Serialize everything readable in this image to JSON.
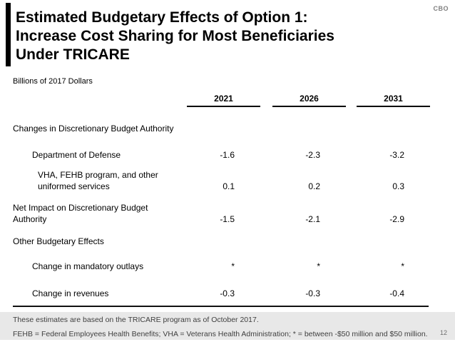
{
  "slide": {
    "brand": "CBO",
    "title_lines": [
      "Estimated Budgetary Effects of Option 1:",
      "Increase Cost Sharing for Most Beneficiaries",
      "Under TRICARE"
    ],
    "units_label": "Billions of 2017 Dollars",
    "page_number": "12"
  },
  "table": {
    "columns": [
      "2021",
      "2026",
      "2031"
    ],
    "rows": [
      {
        "label": "Changes in Discretionary Budget Authority",
        "type": "section",
        "values": []
      },
      {
        "label": "Department of Defense",
        "type": "item",
        "values": [
          "-1.6",
          "-2.3",
          "-3.2"
        ]
      },
      {
        "label": "VHA, FEHB program, and other uniformed services",
        "type": "item",
        "values": [
          "0.1",
          "0.2",
          "0.3"
        ]
      },
      {
        "label": "Net Impact on Discretionary Budget Authority",
        "type": "total",
        "values": [
          "-1.5",
          "-2.1",
          "-2.9"
        ]
      },
      {
        "label": "Other Budgetary Effects",
        "type": "section",
        "values": []
      },
      {
        "label": "Change in mandatory outlays",
        "type": "item",
        "values": [
          "*",
          "*",
          "*"
        ]
      },
      {
        "label": "Change in revenues",
        "type": "item",
        "values": [
          "-0.3",
          "-0.3",
          "-0.4"
        ]
      }
    ]
  },
  "footer": {
    "note": "These estimates are based on the TRICARE program as of October 2017.",
    "definitions": "FEHB = Federal Employees Health Benefits; VHA = Veterans Health Administration; * = between -$50 million and $50 million."
  },
  "colors": {
    "accent_bar": "#000000",
    "brand_gray": "#808080",
    "footer_band": "#e8e8e8",
    "footer_text": "#404040",
    "rule": "#111111"
  }
}
